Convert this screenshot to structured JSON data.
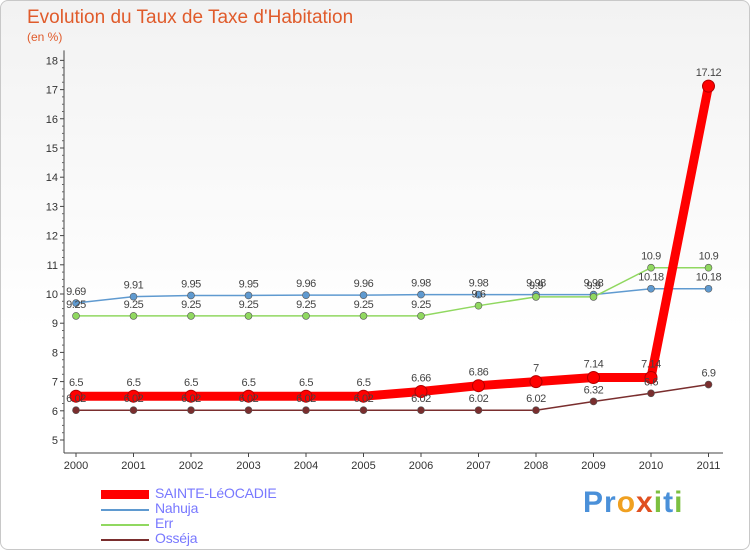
{
  "title": "Evolution du Taux de Taxe d'Habitation",
  "unit_label": "(en %)",
  "watermark": {
    "letters": [
      {
        "ch": "P",
        "color": "#4a90d9"
      },
      {
        "ch": "r",
        "color": "#4a90d9"
      },
      {
        "ch": "o",
        "color": "#f0a020"
      },
      {
        "ch": "x",
        "color": "#e05020"
      },
      {
        "ch": "i",
        "color": "#7cc040"
      },
      {
        "ch": "t",
        "color": "#4a90d9"
      },
      {
        "ch": "i",
        "color": "#7cc040"
      }
    ]
  },
  "chart_data": {
    "type": "line",
    "title": "Evolution du Taux de Taxe d'Habitation",
    "ylabel": "(en %)",
    "xlabel": "",
    "ylim": [
      5,
      18
    ],
    "yticks": [
      "5",
      "6",
      "7",
      "8",
      "9",
      "10",
      "11",
      "12",
      "13",
      "14",
      "15",
      "16",
      "17",
      "18"
    ],
    "categories": [
      "2000",
      "2001",
      "2002",
      "2003",
      "2004",
      "2005",
      "2006",
      "2007",
      "2008",
      "2009",
      "2010",
      "2011"
    ],
    "legend_position": "bottom-left",
    "grid": false,
    "series": [
      {
        "name": "SAINTE-LéOCADIE",
        "color": "#ff0000",
        "emphasis": true,
        "values": [
          6.5,
          6.5,
          6.5,
          6.5,
          6.5,
          6.5,
          6.66,
          6.86,
          7,
          7.14,
          7.14,
          17.12
        ],
        "labels": [
          "6.5",
          "6.5",
          "6.5",
          "6.5",
          "6.5",
          "6.5",
          "6.66",
          "6.86",
          "7",
          "7.14",
          "7.14",
          "17.12"
        ]
      },
      {
        "name": "Nahuja",
        "color": "#5f9ad0",
        "values": [
          9.69,
          9.91,
          9.95,
          9.95,
          9.96,
          9.96,
          9.98,
          9.98,
          9.98,
          9.98,
          10.18,
          10.18
        ],
        "labels": [
          "9.69",
          "9.91",
          "9.95",
          "9.95",
          "9.96",
          "9.96",
          "9.98",
          "9.98",
          "9.98",
          "9.98",
          "10.18",
          "10.18"
        ]
      },
      {
        "name": "Err",
        "color": "#90d860",
        "values": [
          9.25,
          9.25,
          9.25,
          9.25,
          9.25,
          9.25,
          9.25,
          9.6,
          9.9,
          9.9,
          10.9,
          10.9
        ],
        "labels": [
          "9.25",
          "9.25",
          "9.25",
          "9.25",
          "9.25",
          "9.25",
          "9.25",
          "9.6",
          "9.9",
          "9.9",
          "10.9",
          "10.9"
        ]
      },
      {
        "name": "Osséja",
        "color": "#7a2e2e",
        "values": [
          6.02,
          6.02,
          6.02,
          6.02,
          6.02,
          6.02,
          6.02,
          6.02,
          6.02,
          6.32,
          6.6,
          6.9
        ],
        "labels": [
          "6.02",
          "6.02",
          "6.02",
          "6.02",
          "6.02",
          "6.02",
          "6.02",
          "6.02",
          "6.02",
          "6.32",
          "6.6",
          "6.9"
        ]
      }
    ]
  }
}
